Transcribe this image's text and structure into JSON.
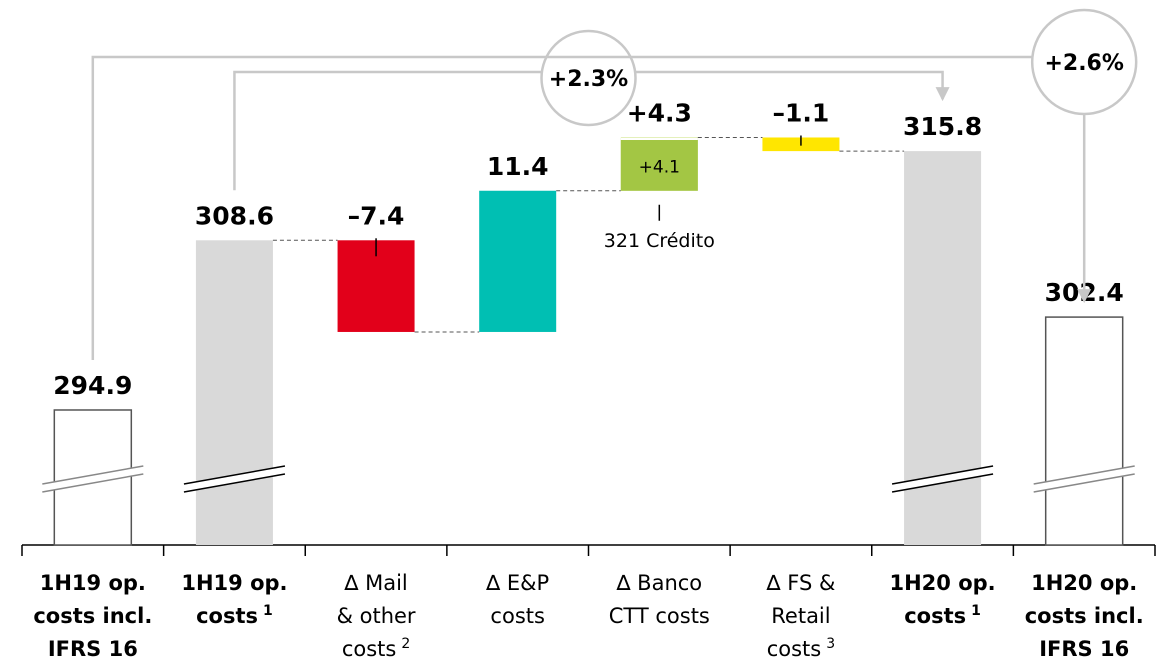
{
  "chart_data": {
    "type": "waterfall",
    "categories": [
      [
        "1H19 op.",
        "costs incl.",
        "IFRS 16"
      ],
      [
        "1H19 op.",
        "costs"
      ],
      [
        "∆ Mail",
        "& other",
        "costs"
      ],
      [
        "∆ E&P",
        "costs"
      ],
      [
        "∆ Banco",
        "CTT costs"
      ],
      [
        "∆ FS &",
        "Retail",
        "costs"
      ],
      [
        "1H20 op.",
        "costs"
      ],
      [
        "1H20 op.",
        "costs incl.",
        "IFRS 16"
      ]
    ],
    "category_notes": [
      null,
      "1",
      "2",
      null,
      null,
      "3",
      "1",
      null
    ],
    "values": [
      294.9,
      308.6,
      -7.4,
      11.4,
      4.3,
      -1.1,
      315.8,
      302.4
    ],
    "value_labels": [
      "294.9",
      "308.6",
      "–7.4",
      "11.4",
      "+4.3",
      "–1.1",
      "315.8",
      "302.4"
    ],
    "measure": [
      "absolute",
      "absolute",
      "relative",
      "relative",
      "relative",
      "relative",
      "absolute",
      "absolute"
    ],
    "colors": [
      "#ffffff",
      "#d9d9d9",
      "#e2001a",
      "#00bfb3",
      "#c9e07a",
      "#ffe600",
      "#d9d9d9",
      "#ffffff"
    ],
    "inner_segment": {
      "category": 4,
      "value": 4.1,
      "label": "+4.1",
      "color": "#a3c644"
    },
    "annotations": [
      {
        "category": 4,
        "text": "321 Crédito"
      }
    ],
    "growth": [
      {
        "from": 1,
        "to": 6,
        "label": "+2.3%",
        "color": "#e2001a"
      },
      {
        "from": 0,
        "to": 7,
        "label": "+2.6%",
        "color": "#b0b0b0"
      }
    ],
    "ylim": [
      284,
      328
    ],
    "axis_break": true
  }
}
